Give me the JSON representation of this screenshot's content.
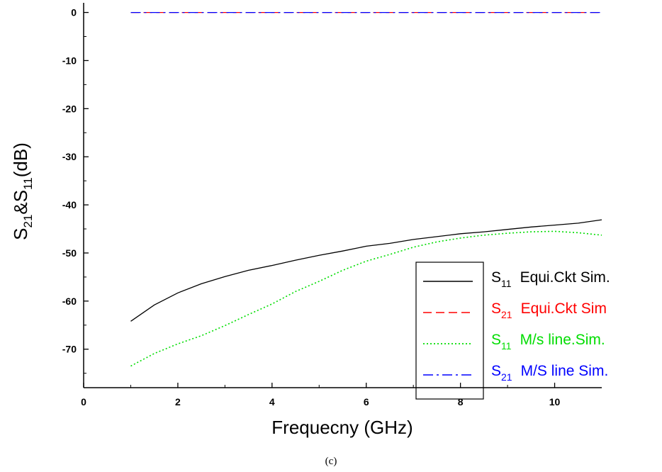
{
  "chart_data": {
    "type": "line",
    "title": "",
    "xlabel": "Frequecny (GHz)",
    "ylabel": {
      "base": "S",
      "sub1": "21",
      "mid": "&S",
      "sub2": "11",
      "unit": "(dB)"
    },
    "xlim": [
      0,
      11
    ],
    "ylim": [
      -78,
      2
    ],
    "x_ticks": [
      0,
      2,
      4,
      6,
      8,
      10
    ],
    "y_ticks": [
      0,
      -10,
      -20,
      -30,
      -40,
      -50,
      -60,
      -70
    ],
    "grid": false,
    "legend_position": "bottom-right",
    "series": [
      {
        "name": {
          "base": "S",
          "sub": "11",
          "rest": "Equi.Ckt Sim."
        },
        "color": "#000000",
        "style": "solid",
        "x": [
          1,
          1.5,
          2,
          2.5,
          3,
          3.5,
          4,
          4.5,
          5,
          5.5,
          6,
          6.5,
          7,
          7.5,
          8,
          8.5,
          9,
          9.5,
          10,
          10.5,
          11
        ],
        "y": [
          -64.2,
          -60.8,
          -58.3,
          -56.4,
          -54.9,
          -53.6,
          -52.6,
          -51.5,
          -50.5,
          -49.6,
          -48.6,
          -48.0,
          -47.2,
          -46.6,
          -46.0,
          -45.6,
          -45.1,
          -44.6,
          -44.2,
          -43.8,
          -43.1
        ]
      },
      {
        "name": {
          "base": "S",
          "sub": "21",
          "rest": "Equi.Ckt Sim"
        },
        "color": "#ff0000",
        "style": "dashed",
        "x": [
          1,
          11
        ],
        "y": [
          0,
          0
        ]
      },
      {
        "name": {
          "base": "S",
          "sub": "11",
          "rest": "M/s line.Sim."
        },
        "color": "#00dd00",
        "style": "dotted",
        "x": [
          1,
          1.5,
          2,
          2.5,
          3,
          3.5,
          4,
          4.5,
          5,
          5.5,
          6,
          6.5,
          7,
          7.5,
          8,
          8.5,
          9,
          9.5,
          10,
          10.5,
          11
        ],
        "y": [
          -73.5,
          -70.9,
          -68.9,
          -67.2,
          -65.1,
          -62.8,
          -60.6,
          -58.0,
          -55.9,
          -53.6,
          -51.7,
          -50.3,
          -48.8,
          -47.7,
          -46.9,
          -46.3,
          -45.9,
          -45.6,
          -45.5,
          -45.8,
          -46.3
        ]
      },
      {
        "name": {
          "base": "S",
          "sub": "21",
          "rest": "M/S line Sim."
        },
        "color": "#0000ff",
        "style": "dashdot",
        "x": [
          1,
          11
        ],
        "y": [
          0,
          0
        ]
      }
    ]
  },
  "caption": "(c)"
}
